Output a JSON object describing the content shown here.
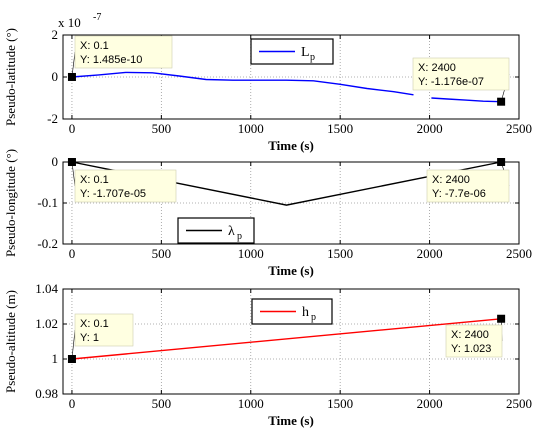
{
  "chart_data": [
    {
      "type": "line",
      "ylabel": "Pseudo-latitude (°)",
      "xlabel": "Time (s)",
      "exponent_base": "x 10",
      "exponent_power": "-7",
      "xlim": [
        -50,
        2500
      ],
      "ylim": [
        -2,
        2
      ],
      "xticks": [
        "0",
        "500",
        "1000",
        "1500",
        "2000",
        "2500"
      ],
      "yticks": [
        "2",
        "0",
        "-2"
      ],
      "ytick_values": [
        2,
        0,
        -2
      ],
      "grid": true,
      "legend": {
        "symbol": "L",
        "subscript": "p",
        "placement": "top-center"
      },
      "series": [
        {
          "name": "Lp",
          "color": "#0000ff",
          "x": [
            0,
            150,
            300,
            450,
            600,
            750,
            900,
            1050,
            1200,
            1350,
            1500,
            1650,
            1800,
            1910
          ],
          "y": [
            0.0,
            0.1,
            0.22,
            0.2,
            0.05,
            -0.12,
            -0.15,
            -0.15,
            -0.15,
            -0.18,
            -0.35,
            -0.55,
            -0.7,
            -0.85
          ]
        },
        {
          "name": "Lp",
          "color": "#0000ff",
          "x": [
            2010,
            2100,
            2200,
            2300,
            2400
          ],
          "y": [
            -1.0,
            -1.05,
            -1.1,
            -1.15,
            -1.176
          ]
        }
      ],
      "markers": [
        {
          "x": 0.1,
          "y": 0.001485
        },
        {
          "x": 2400,
          "y": -1.176
        }
      ],
      "datatips": [
        {
          "line1": "X: 0.1",
          "line2": "Y: 1.485e-10",
          "anchor": "right"
        },
        {
          "line1": "X: 2400",
          "line2": "Y: -1.176e-07",
          "anchor": "left"
        }
      ]
    },
    {
      "type": "line",
      "ylabel": "Pseudo-longitude (°)",
      "xlabel": "Time (s)",
      "xlim": [
        -50,
        2500
      ],
      "ylim": [
        -0.2,
        0
      ],
      "xticks": [
        "0",
        "500",
        "1000",
        "1500",
        "2000",
        "2500"
      ],
      "yticks": [
        "0",
        "-0.1",
        "-0.2"
      ],
      "ytick_values": [
        0,
        -0.1,
        -0.2
      ],
      "grid": true,
      "legend": {
        "symbol": "λ",
        "subscript": "p",
        "placement": "bottom-left"
      },
      "series": [
        {
          "name": "λp",
          "color": "#000000",
          "x": [
            0.1,
            1200,
            2400
          ],
          "y": [
            -1.707e-05,
            -0.105,
            -7.7e-06
          ]
        }
      ],
      "markers": [
        {
          "x": 0.1,
          "y": -1.707e-05
        },
        {
          "x": 2400,
          "y": -7.7e-06
        }
      ],
      "datatips": [
        {
          "line1": "X: 0.1",
          "line2": "Y: -1.707e-05",
          "anchor": "right"
        },
        {
          "line1": "X: 2400",
          "line2": "Y: -7.7e-06",
          "anchor": "left"
        }
      ]
    },
    {
      "type": "line",
      "ylabel": "Pseudo-altitude (m)",
      "xlabel": "Time (s)",
      "xlim": [
        -50,
        2500
      ],
      "ylim": [
        0.98,
        1.04
      ],
      "xticks": [
        "0",
        "500",
        "1000",
        "1500",
        "2000",
        "2500"
      ],
      "yticks": [
        "1.04",
        "1.02",
        "1",
        "0.98"
      ],
      "ytick_values": [
        1.04,
        1.02,
        1.0,
        0.98
      ],
      "grid": true,
      "legend": {
        "symbol": "h",
        "subscript": "p",
        "placement": "top-center"
      },
      "series": [
        {
          "name": "hp",
          "color": "#ff0000",
          "x": [
            0.1,
            2400
          ],
          "y": [
            1.0,
            1.023
          ]
        }
      ],
      "markers": [
        {
          "x": 0.1,
          "y": 1.0
        },
        {
          "x": 2400,
          "y": 1.023
        }
      ],
      "datatips": [
        {
          "line1": "X: 0.1",
          "line2": "Y: 1",
          "anchor": "right"
        },
        {
          "line1": "X: 2400",
          "line2": "Y: 1.023",
          "anchor": "left"
        }
      ]
    }
  ]
}
